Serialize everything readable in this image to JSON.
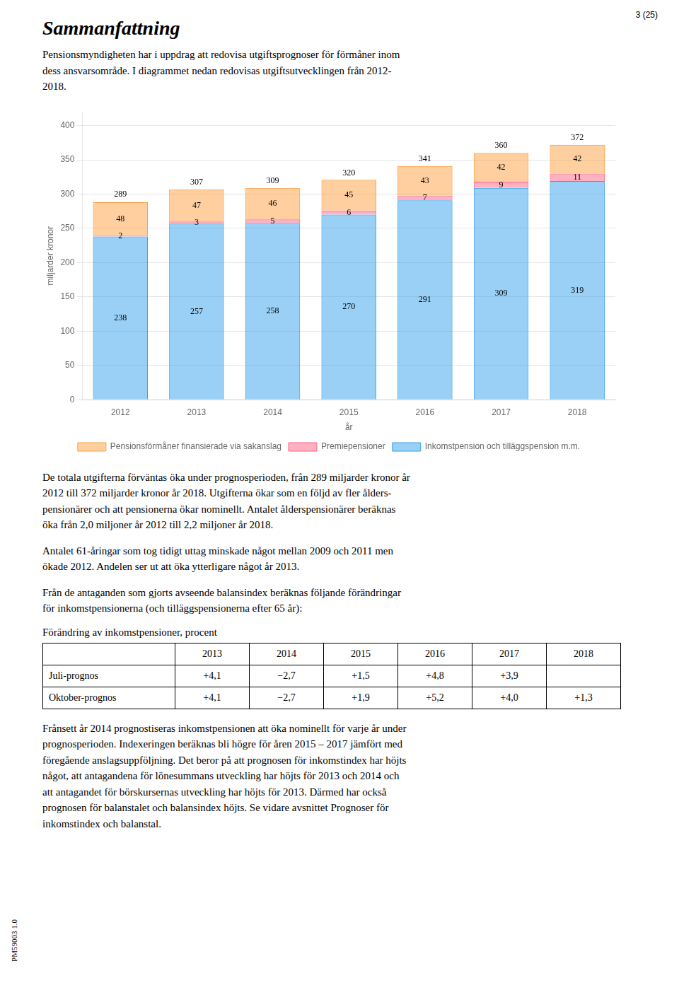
{
  "document": {
    "page_number": "3 (25)",
    "title": "Sammanfattning",
    "intro": "Pensionsmyndigheten har i uppdrag att redovisa utgiftsprognoser för förmåner inom\ndess ansvarsområde. I diagrammet nedan redovisas utgiftsutvecklingen från 2012-\n2018.",
    "paragraphs_before_table": [
      "De totala utgifterna förväntas öka under prognosperioden, från 289 miljarder kronor år\n2012 till 372 miljarder kronor år 2018. Utgifterna ökar som en följd av fler ålders-\npensionärer och att pensionerna ökar nominellt. Antalet ålderspensionärer beräknas\nöka från 2,0 miljoner år 2012 till 2,2 miljoner år 2018.",
      "Antalet 61-åringar som tog tidigt uttag minskade något mellan 2009 och 2011 men\nökade 2012. Andelen ser ut att öka ytterligare något år 2013.",
      "Från de antaganden som gjorts avseende balansindex beräknas följande förändringar\nför inkomstpensionerna (och tilläggspensionerna efter 65 år):"
    ],
    "table": {
      "title": "Förändring av inkomstpensioner, procent",
      "columns": [
        "2013",
        "2014",
        "2015",
        "2016",
        "2017",
        "2018"
      ],
      "rows": [
        {
          "label": "Juli-prognos",
          "values": [
            "+4,1",
            "−2,7",
            "+1,5",
            "+4,8",
            "+3,9",
            null
          ]
        },
        {
          "label": "Oktober-prognos",
          "values": [
            "+4,1",
            "−2,7",
            "+1,9",
            "+5,2",
            "+4,0",
            "+1,3"
          ]
        }
      ]
    },
    "paragraphs_after_table": [
      "Frånsett år 2014 prognostiseras inkomstpensionen att öka nominellt för varje år under\nprognosperioden. Indexeringen beräknas bli högre för åren 2015 – 2017 jämfört med\nföregående anslagsuppföljning. Det beror på att prognosen för inkomstindex har höjts\nnågot, att antagandena för lönesummans utveckling har höjts för 2013 och 2014 och\natt antagandet för börskursernas utveckling har höjts för 2013. Därmed har också\nprognosen för balanstalet och balansindex höjts. Se vidare avsnittet Prognoser för\ninkomstindex och balanstal."
    ],
    "footer": "PM59003 1.0"
  },
  "chart_data": {
    "type": "bar",
    "stacked": true,
    "xlabel": "år",
    "ylabel": "miljarder kronor",
    "categories": [
      "2012",
      "2013",
      "2014",
      "2015",
      "2016",
      "2017",
      "2018"
    ],
    "series": [
      {
        "name": "Inkomstpension och tilläggspension m.m.",
        "values": [
          238,
          257,
          258,
          270,
          291,
          309,
          319
        ]
      },
      {
        "name": "Premiepensioner",
        "values": [
          2,
          3,
          5,
          6,
          7,
          9,
          11
        ]
      },
      {
        "name": "Pensionsförmåner finansierade via sakanslag",
        "values": [
          48,
          47,
          46,
          45,
          43,
          42,
          42
        ]
      }
    ],
    "totals": [
      289,
      307,
      309,
      320,
      341,
      360,
      372
    ],
    "ylim": [
      0,
      420
    ],
    "yticks": [
      0,
      50,
      100,
      150,
      200,
      250,
      300,
      350,
      400
    ],
    "grid": true,
    "data_labels": true,
    "legend": "bottom"
  }
}
